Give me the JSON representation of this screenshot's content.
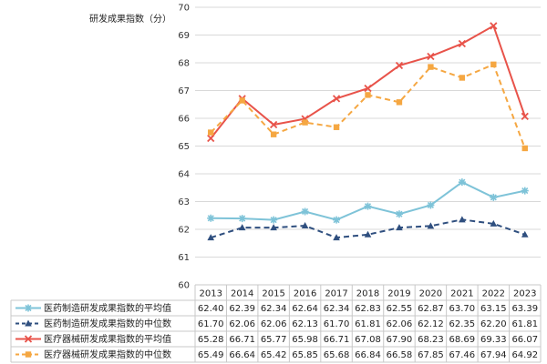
{
  "chart_data": {
    "type": "line",
    "ylabel": "研发成果指数（分）",
    "ylim": [
      60,
      70
    ],
    "yticks": [
      60,
      61,
      62,
      63,
      64,
      65,
      66,
      67,
      68,
      69,
      70
    ],
    "categories": [
      "2013",
      "2014",
      "2015",
      "2016",
      "2017",
      "2018",
      "2019",
      "2020",
      "2021",
      "2022",
      "2023"
    ],
    "grid": "horizontal",
    "legend": "data-table-below",
    "series": [
      {
        "name": "医药制造研发成果指数的平均值",
        "color": "#7ec3d8",
        "dash": "solid",
        "marker": "star",
        "values": [
          62.4,
          62.39,
          62.34,
          62.64,
          62.34,
          62.83,
          62.55,
          62.87,
          63.7,
          63.15,
          63.39
        ],
        "labels": [
          "62.40",
          "62.39",
          "62.34",
          "62.64",
          "62.34",
          "62.83",
          "62.55",
          "62.87",
          "63.70",
          "63.15",
          "63.39"
        ]
      },
      {
        "name": "医药制造研发成果指数的中位数",
        "color": "#2f4f7f",
        "dash": "dashed",
        "marker": "triangle",
        "values": [
          61.7,
          62.06,
          62.06,
          62.13,
          61.7,
          61.81,
          62.06,
          62.12,
          62.35,
          62.2,
          61.81
        ],
        "labels": [
          "61.70",
          "62.06",
          "62.06",
          "62.13",
          "61.70",
          "61.81",
          "62.06",
          "62.12",
          "62.35",
          "62.20",
          "61.81"
        ]
      },
      {
        "name": "医疗器械研发成果指数的平均值",
        "color": "#e8534a",
        "dash": "solid",
        "marker": "x",
        "values": [
          65.28,
          66.71,
          65.77,
          65.98,
          66.71,
          67.08,
          67.9,
          68.23,
          68.69,
          69.33,
          66.07
        ],
        "labels": [
          "65.28",
          "66.71",
          "65.77",
          "65.98",
          "66.71",
          "67.08",
          "67.90",
          "68.23",
          "68.69",
          "69.33",
          "66.07"
        ]
      },
      {
        "name": "医疗器械研发成果指数的中位数",
        "color": "#f5a742",
        "dash": "dashed",
        "marker": "square",
        "values": [
          65.49,
          66.64,
          65.42,
          65.85,
          65.68,
          66.84,
          66.58,
          67.85,
          67.46,
          67.94,
          64.92
        ],
        "labels": [
          "65.49",
          "66.64",
          "65.42",
          "65.85",
          "65.68",
          "66.84",
          "66.58",
          "67.85",
          "67.46",
          "67.94",
          "64.92"
        ]
      }
    ]
  }
}
